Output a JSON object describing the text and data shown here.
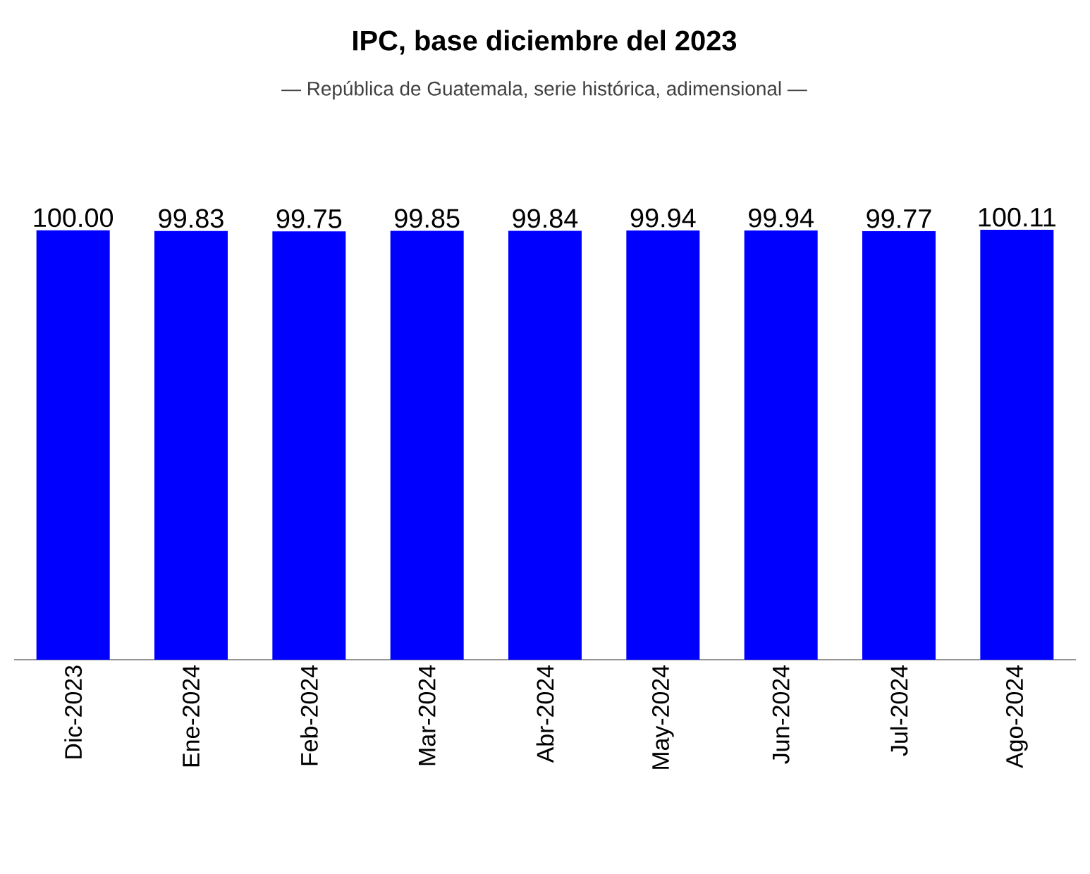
{
  "chart_data": {
    "type": "bar",
    "title": "IPC, base diciembre del 2023",
    "subtitle": "— República de Guatemala, serie histórica, adimensional —",
    "categories": [
      "Dic-2023",
      "Ene-2024",
      "Feb-2024",
      "Mar-2024",
      "Abr-2024",
      "May-2024",
      "Jun-2024",
      "Jul-2024",
      "Ago-2024"
    ],
    "values": [
      100.0,
      99.83,
      99.75,
      99.85,
      99.84,
      99.94,
      99.94,
      99.77,
      100.11
    ],
    "value_labels": [
      "100.00",
      "99.83",
      "99.75",
      "99.85",
      "99.84",
      "99.94",
      "99.94",
      "99.77",
      "100.11"
    ],
    "color": "#0000ff"
  }
}
